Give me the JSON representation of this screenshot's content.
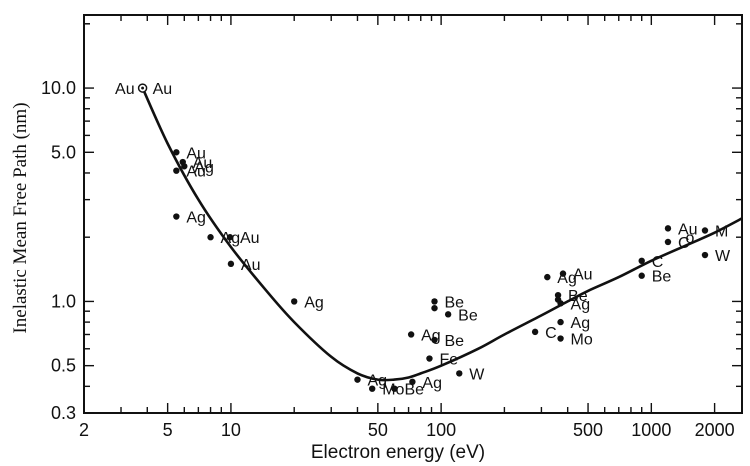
{
  "chart_data": {
    "type": "scatter",
    "xlabel": "Electron energy (eV)",
    "ylabel": "Inelastic Mean Free Path  (nm)",
    "xscale": "log",
    "yscale": "log",
    "xlim": [
      2,
      2700
    ],
    "ylim": [
      0.3,
      22
    ],
    "grid": false,
    "x_ticks": [
      2,
      5,
      10,
      50,
      100,
      500,
      1000,
      2000
    ],
    "x_tick_labels": [
      "2",
      "5",
      "10",
      "50",
      "100",
      "500",
      "1000",
      "2000"
    ],
    "y_ticks": [
      0.3,
      0.5,
      1.0,
      5.0,
      10.0
    ],
    "y_tick_labels": [
      "0.3",
      "0.5",
      "1.0",
      "5.0",
      "10.0"
    ],
    "points": [
      {
        "x": 3.8,
        "y": 10.0,
        "label": "Au",
        "marker": "open"
      },
      {
        "x": 5.5,
        "y": 5.0,
        "label": "Au"
      },
      {
        "x": 5.9,
        "y": 4.5,
        "label": "Au"
      },
      {
        "x": 6.0,
        "y": 4.3,
        "label": "Ag"
      },
      {
        "x": 5.5,
        "y": 4.1,
        "label": "Au"
      },
      {
        "x": 5.5,
        "y": 2.5,
        "label": "Ag"
      },
      {
        "x": 8.0,
        "y": 2.0,
        "label": "Ag"
      },
      {
        "x": 9.9,
        "y": 2.0,
        "label": "Au"
      },
      {
        "x": 10.0,
        "y": 1.5,
        "label": "Au"
      },
      {
        "x": 20.0,
        "y": 1.0,
        "label": "Ag"
      },
      {
        "x": 40.0,
        "y": 0.43,
        "label": "Ag"
      },
      {
        "x": 47.0,
        "y": 0.39,
        "label": "Mo"
      },
      {
        "x": 60.0,
        "y": 0.39,
        "label": "Be"
      },
      {
        "x": 73.0,
        "y": 0.42,
        "label": "Ag"
      },
      {
        "x": 72.0,
        "y": 0.7,
        "label": "Ag"
      },
      {
        "x": 88.0,
        "y": 0.54,
        "label": "Fe"
      },
      {
        "x": 93.0,
        "y": 0.66,
        "label": "Be"
      },
      {
        "x": 93.0,
        "y": 1.0,
        "label": "Be"
      },
      {
        "x": 93.0,
        "y": 0.93,
        "label": ""
      },
      {
        "x": 108.0,
        "y": 0.87,
        "label": "Be"
      },
      {
        "x": 122.0,
        "y": 0.46,
        "label": "W"
      },
      {
        "x": 280.0,
        "y": 0.72,
        "label": "C"
      },
      {
        "x": 320.0,
        "y": 1.3,
        "label": "Ag"
      },
      {
        "x": 380.0,
        "y": 1.35,
        "label": "Au"
      },
      {
        "x": 360.0,
        "y": 1.07,
        "label": "Be"
      },
      {
        "x": 360.0,
        "y": 1.02,
        "label": ""
      },
      {
        "x": 370.0,
        "y": 0.98,
        "label": "Ag"
      },
      {
        "x": 370.0,
        "y": 0.8,
        "label": "Ag"
      },
      {
        "x": 370.0,
        "y": 0.67,
        "label": "Mo"
      },
      {
        "x": 900.0,
        "y": 1.55,
        "label": "C"
      },
      {
        "x": 900.0,
        "y": 1.32,
        "label": "Be"
      },
      {
        "x": 1200.0,
        "y": 2.2,
        "label": "Au"
      },
      {
        "x": 1200.0,
        "y": 1.9,
        "label": "C"
      },
      {
        "x": 1800.0,
        "y": 2.15,
        "label": "M"
      },
      {
        "x": 1800.0,
        "y": 1.65,
        "label": "W"
      }
    ],
    "extra_labels": [
      {
        "text": "Au",
        "x": 3.8,
        "y": 10.0
      },
      {
        "text": "o",
        "x": 1750,
        "y": 2.0
      }
    ],
    "curve": {
      "x": [
        3.8,
        5,
        7,
        10,
        15,
        20,
        30,
        40,
        50,
        60,
        70,
        80,
        100,
        150,
        200,
        300,
        400,
        500,
        700,
        1000,
        1500,
        2000,
        2700
      ],
      "y": [
        10.0,
        5.5,
        3.0,
        1.8,
        1.1,
        0.8,
        0.55,
        0.46,
        0.43,
        0.43,
        0.44,
        0.46,
        0.5,
        0.6,
        0.7,
        0.86,
        1.0,
        1.12,
        1.3,
        1.55,
        1.85,
        2.1,
        2.45
      ]
    }
  }
}
